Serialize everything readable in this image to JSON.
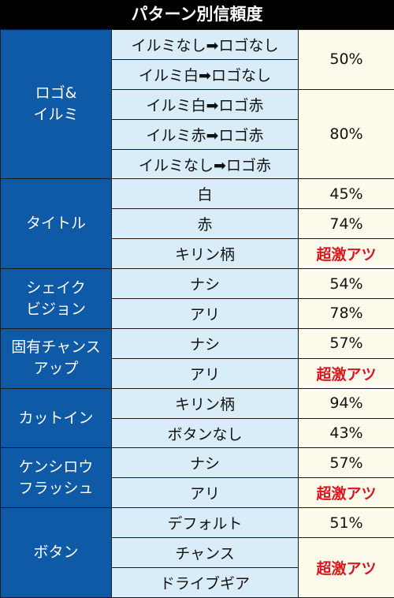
{
  "title": "パターン別信頼度",
  "colors": {
    "category_bg": "#0f5aa6",
    "condition_bg": "#d9edf8",
    "rate_bg": "#fdfbec",
    "hot_text": "#e0141c",
    "header_bg": "#000000"
  },
  "groups": [
    {
      "name_lines": [
        "ロゴ&",
        "イルミ"
      ],
      "rows": [
        "イルミなし➡ロゴなし",
        "イルミ白➡ロゴなし",
        "イルミ白➡ロゴ赤",
        "イルミ赤➡ロゴ赤",
        "イルミなし➡ロゴ赤"
      ],
      "rates": [
        "50%",
        "80%"
      ]
    },
    {
      "name_lines": [
        "タイトル"
      ],
      "rows": [
        "白",
        "赤",
        "キリン柄"
      ],
      "rates": [
        "45%",
        "74%",
        "超激アツ"
      ]
    },
    {
      "name_lines": [
        "シェイク",
        "ビジョン"
      ],
      "rows": [
        "ナシ",
        "アリ"
      ],
      "rates": [
        "54%",
        "78%"
      ]
    },
    {
      "name_lines": [
        "固有チャンス",
        "アップ"
      ],
      "rows": [
        "ナシ",
        "アリ"
      ],
      "rates": [
        "57%",
        "超激アツ"
      ]
    },
    {
      "name_lines": [
        "カットイン"
      ],
      "rows": [
        "キリン柄",
        "ボタンなし"
      ],
      "rates": [
        "94%",
        "43%"
      ]
    },
    {
      "name_lines": [
        "ケンシロウ",
        "フラッシュ"
      ],
      "rows": [
        "ナシ",
        "アリ"
      ],
      "rates": [
        "57%",
        "超激アツ"
      ]
    },
    {
      "name_lines": [
        "ボタン"
      ],
      "rows": [
        "デフォルト",
        "チャンス",
        "ドライブギア"
      ],
      "rates": [
        "51%",
        "超激アツ"
      ]
    }
  ]
}
